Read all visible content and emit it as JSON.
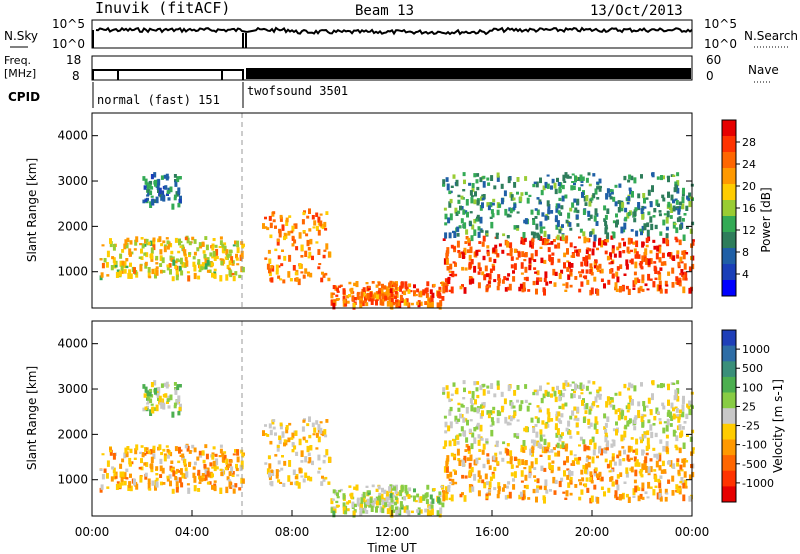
{
  "header": {
    "left": "Inuvik (fitACF)",
    "center": "Beam 13",
    "right": "13/Oct/2013"
  },
  "strip_labels": {
    "nsky": "N.Sky",
    "nsky_ticks": [
      "10^5",
      "10^0"
    ],
    "nsearch": "N.Search",
    "freq_lines": [
      "Freq.",
      "[MHz]"
    ],
    "freq_ticks": [
      "18",
      "8"
    ],
    "nave": "Nave",
    "nave_ticks": [
      "60",
      "0"
    ],
    "cpid": "CPID"
  },
  "cpid_segments": [
    {
      "label": "normal (fast) 151",
      "start_hour": 0,
      "end_hour": 6
    },
    {
      "label": "twofsound 3501",
      "start_hour": 6,
      "end_hour": 24
    }
  ],
  "colorbar_power": {
    "label": "Power [dB]",
    "ticks": [
      "28",
      "24",
      "20",
      "16",
      "12",
      "8",
      "4"
    ],
    "colors": [
      "#e60000",
      "#ff3300",
      "#ff6600",
      "#ff9900",
      "#ffcc00",
      "#99cc33",
      "#33aa55",
      "#2e7d5b",
      "#1f5fa6",
      "#1a3fb8",
      "#0000ff"
    ]
  },
  "colorbar_velocity": {
    "label": "Velocity [m s-1]",
    "ticks": [
      "1000",
      "500",
      "100",
      "25",
      "-25",
      "-100",
      "-500",
      "-1000"
    ],
    "colors": [
      "#1f3fb8",
      "#2e6da6",
      "#3a8f7a",
      "#4caf50",
      "#88cc44",
      "#c8c8c8",
      "#ffcc00",
      "#ff9900",
      "#ff6600",
      "#ff3300",
      "#e60000"
    ]
  },
  "chart_data": [
    {
      "type": "heatmap",
      "panel": "power",
      "ylabel": "Slant Range [km]",
      "xlim": [
        0,
        24
      ],
      "ylim": [
        200,
        4500
      ],
      "yticks": [
        1000,
        2000,
        3000,
        4000
      ],
      "colorbar_range": [
        0,
        30
      ],
      "scatter_regions": [
        {
          "t0": 0.3,
          "t1": 6.0,
          "r0": 900,
          "r1": 1800,
          "v": 18
        },
        {
          "t0": 2.0,
          "t1": 3.5,
          "r0": 2500,
          "r1": 3200,
          "v": 8
        },
        {
          "t0": 6.8,
          "t1": 9.5,
          "r0": 800,
          "r1": 2400,
          "v": 22
        },
        {
          "t0": 9.5,
          "t1": 14.0,
          "r0": 300,
          "r1": 800,
          "v": 24
        },
        {
          "t0": 14.0,
          "t1": 24.0,
          "r0": 600,
          "r1": 1800,
          "v": 26
        },
        {
          "t0": 14.0,
          "t1": 24.0,
          "r0": 1800,
          "r1": 3200,
          "v": 10
        }
      ]
    },
    {
      "type": "heatmap",
      "panel": "velocity",
      "ylabel": "Slant Range [km]",
      "xlabel": "Time UT",
      "xlim": [
        0,
        24
      ],
      "ylim": [
        200,
        4500
      ],
      "yticks": [
        1000,
        2000,
        3000,
        4000
      ],
      "xticks": [
        "00:00",
        "04:00",
        "08:00",
        "12:00",
        "16:00",
        "20:00",
        "00:00"
      ],
      "colorbar_range": [
        -1000,
        1000
      ],
      "scatter_regions": [
        {
          "t0": 0.3,
          "t1": 6.0,
          "r0": 800,
          "r1": 1800,
          "v": -300
        },
        {
          "t0": 2.0,
          "t1": 3.5,
          "r0": 2500,
          "r1": 3200,
          "v": 80
        },
        {
          "t0": 6.8,
          "t1": 9.5,
          "r0": 900,
          "r1": 2400,
          "v": -200
        },
        {
          "t0": 9.5,
          "t1": 14.0,
          "r0": 300,
          "r1": 900,
          "v": 40
        },
        {
          "t0": 14.0,
          "t1": 24.0,
          "r0": 600,
          "r1": 1800,
          "v": -300
        },
        {
          "t0": 14.0,
          "t1": 24.0,
          "r0": 1800,
          "r1": 3200,
          "v": 0
        }
      ]
    }
  ]
}
